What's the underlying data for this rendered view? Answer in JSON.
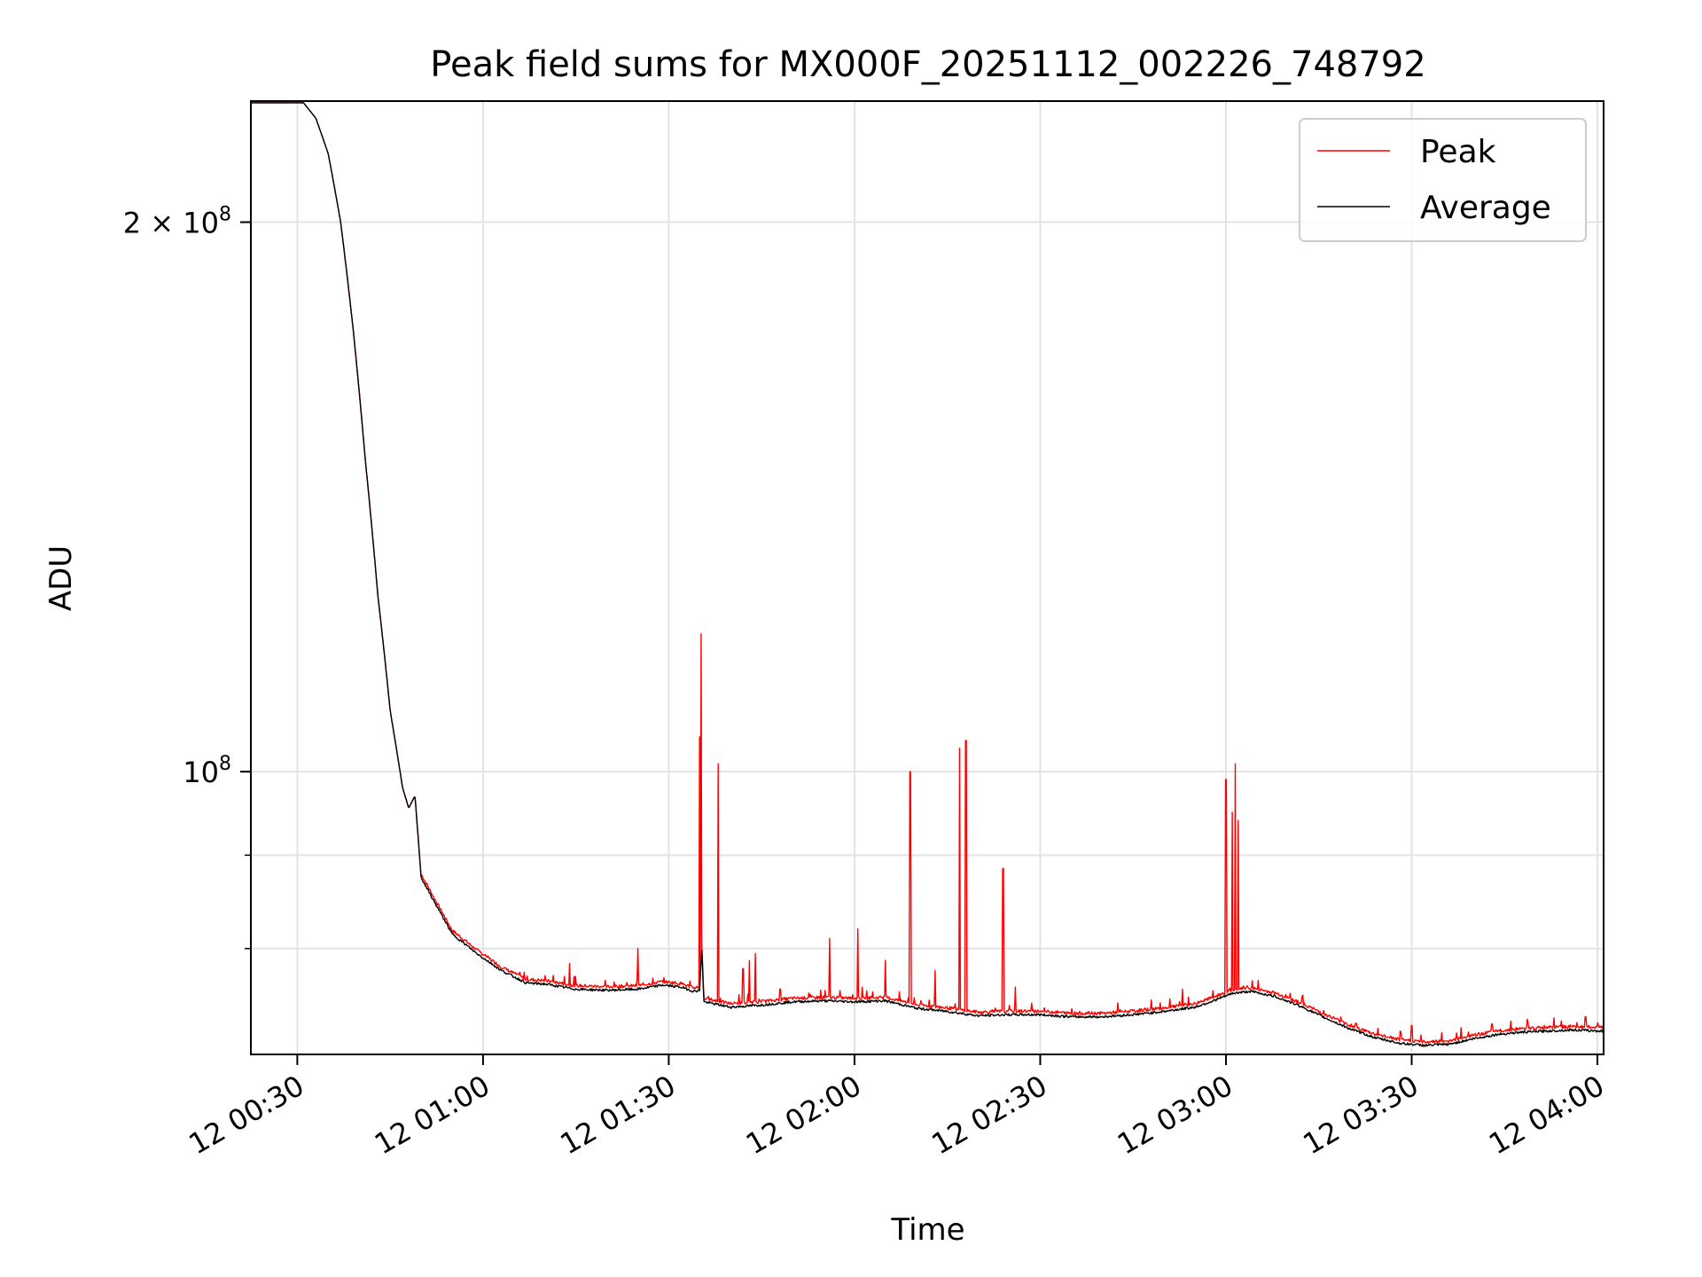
{
  "chart_data": {
    "type": "line",
    "title": "Peak field sums for MX000F_20251112_002226_748792",
    "xlabel": "Time",
    "ylabel": "ADU",
    "y_scale": "log",
    "xlim": [
      "12 00:22:30",
      "12 04:01"
    ],
    "ylim": [
      70000000,
      233000000
    ],
    "x_ticks": [
      "12 00:30",
      "12 01:00",
      "12 01:30",
      "12 02:00",
      "12 02:30",
      "12 03:00",
      "12 03:30",
      "12 04:00"
    ],
    "y_ticks": [
      {
        "value": 100000000,
        "base": "10",
        "exp": "8",
        "mantissa": ""
      },
      {
        "value": 200000000,
        "base": "10",
        "exp": "8",
        "mantissa": "2"
      }
    ],
    "y_minor_ticks": [
      90000000,
      80000000
    ],
    "grid": true,
    "legend_position": "top-right",
    "legend": [
      "Peak",
      "Average"
    ],
    "series": [
      {
        "name": "Average",
        "color": "#000000",
        "points": [
          [
            "00:22:30",
            232500000
          ],
          [
            "00:28",
            232500000
          ],
          [
            "00:31",
            232500000
          ],
          [
            "00:33",
            228000000
          ],
          [
            "00:35",
            218000000
          ],
          [
            "00:37",
            200000000
          ],
          [
            "00:39",
            175000000
          ],
          [
            "00:41",
            148000000
          ],
          [
            "00:43",
            125000000
          ],
          [
            "00:45",
            108000000
          ],
          [
            "00:47",
            98000000
          ],
          [
            "00:48",
            95500000
          ],
          [
            "00:49",
            97000000
          ],
          [
            "00:50",
            87500000
          ],
          [
            "00:52",
            85000000
          ],
          [
            "00:55",
            81500000
          ],
          [
            "00:59",
            79500000
          ],
          [
            "01:03",
            77800000
          ],
          [
            "01:07",
            76600000
          ],
          [
            "01:10",
            76500000
          ],
          [
            "01:15",
            76000000
          ],
          [
            "01:20",
            75900000
          ],
          [
            "01:25",
            76000000
          ],
          [
            "01:29",
            76400000
          ],
          [
            "01:32",
            76200000
          ],
          [
            "01:34",
            75800000
          ],
          [
            "01:35",
            75900000
          ],
          [
            "01:35:20",
            80000000
          ],
          [
            "01:35:40",
            74800000
          ],
          [
            "01:40",
            74300000
          ],
          [
            "01:45",
            74500000
          ],
          [
            "01:50",
            74800000
          ],
          [
            "01:55",
            74900000
          ],
          [
            "02:00",
            74800000
          ],
          [
            "02:05",
            74900000
          ],
          [
            "02:10",
            74200000
          ],
          [
            "02:15",
            73900000
          ],
          [
            "02:20",
            73500000
          ],
          [
            "02:25",
            73600000
          ],
          [
            "02:30",
            73600000
          ],
          [
            "02:35",
            73400000
          ],
          [
            "02:40",
            73400000
          ],
          [
            "02:45",
            73600000
          ],
          [
            "02:50",
            73900000
          ],
          [
            "02:55",
            74300000
          ],
          [
            "02:58",
            74900000
          ],
          [
            "03:01",
            75600000
          ],
          [
            "03:04",
            75800000
          ],
          [
            "03:08",
            75300000
          ],
          [
            "03:12",
            74400000
          ],
          [
            "03:16",
            73300000
          ],
          [
            "03:20",
            72300000
          ],
          [
            "03:24",
            71500000
          ],
          [
            "03:28",
            71000000
          ],
          [
            "03:32",
            70800000
          ],
          [
            "03:36",
            70900000
          ],
          [
            "03:40",
            71400000
          ],
          [
            "03:44",
            71800000
          ],
          [
            "03:48",
            72000000
          ],
          [
            "03:52",
            72100000
          ],
          [
            "03:56",
            72200000
          ],
          [
            "04:00",
            72100000
          ],
          [
            "04:01",
            72100000
          ]
        ]
      },
      {
        "name": "Peak",
        "color": "#ff0000",
        "spikes": [
          [
            "01:14",
            78500000
          ],
          [
            "01:25",
            80000000
          ],
          [
            "01:35:00",
            104500000
          ],
          [
            "01:35:12",
            119000000
          ],
          [
            "01:38",
            101000000
          ],
          [
            "01:42",
            78000000
          ],
          [
            "01:43",
            78800000
          ],
          [
            "01:44",
            79500000
          ],
          [
            "01:48",
            76000000
          ],
          [
            "01:56",
            81000000
          ],
          [
            "02:00:30",
            82000000
          ],
          [
            "02:05",
            78800000
          ],
          [
            "02:09",
            100000000
          ],
          [
            "02:13",
            77800000
          ],
          [
            "02:17",
            103000000
          ],
          [
            "02:18",
            104000000
          ],
          [
            "02:24",
            88500000
          ],
          [
            "02:26",
            76200000
          ],
          [
            "02:53",
            76000000
          ],
          [
            "03:00",
            99000000
          ],
          [
            "03:01",
            95000000
          ],
          [
            "03:01:30",
            101000000
          ],
          [
            "03:02",
            94000000
          ],
          [
            "03:21",
            72800000
          ],
          [
            "03:30",
            72600000
          ],
          [
            "03:38",
            72400000
          ],
          [
            "03:46",
            73000000
          ],
          [
            "03:53",
            73300000
          ],
          [
            "03:58",
            73400000
          ]
        ]
      }
    ]
  }
}
